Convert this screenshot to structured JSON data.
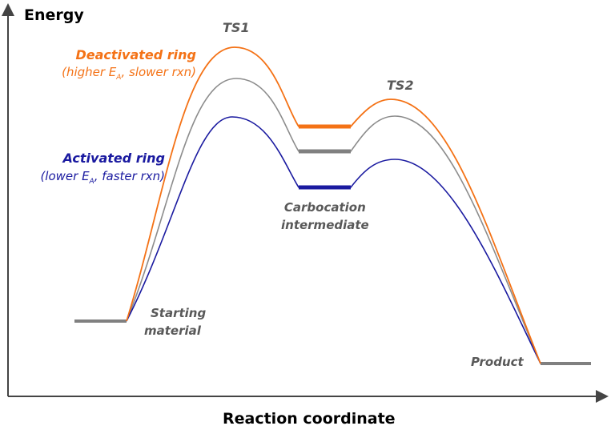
{
  "axes": {
    "y_label": "Energy",
    "x_label": "Reaction coordinate"
  },
  "labels": {
    "ts1": "TS1",
    "ts2": "TS2",
    "deactivated_title": "Deactivated ring",
    "deactivated_sub_pre": "(higher E",
    "deactivated_sub_sub": "A",
    "deactivated_sub_post": ", slower rxn)",
    "activated_title": "Activated ring",
    "activated_sub_pre": "(lower E",
    "activated_sub_sub": "A",
    "activated_sub_post": ", faster rxn)",
    "intermediate_1": "Carbocation",
    "intermediate_2": "intermediate",
    "start_1": "Starting",
    "start_2": "material",
    "product": "Product"
  },
  "colors": {
    "deactivated": "#f47216",
    "reference": "#8c8c8c",
    "activated": "#1a1aa0",
    "label_gray": "#595959"
  }
}
